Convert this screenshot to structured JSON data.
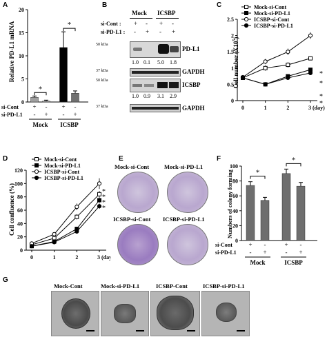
{
  "panels": {
    "A": "A",
    "B": "B",
    "C": "C",
    "D": "D",
    "E": "E",
    "F": "F",
    "G": "G"
  },
  "panel_a": {
    "ylabel": "Relative PD-L1 mRNA",
    "yticks": [
      "0",
      "5",
      "10",
      "15",
      "20"
    ],
    "row1_label": "si-Cont",
    "row2_label": "si-PD-L1",
    "row1_signs": [
      "+",
      "-",
      "+",
      "-"
    ],
    "row2_signs": [
      "-",
      "+",
      "-",
      "+"
    ],
    "groups": [
      "Mock",
      "ICSBP"
    ],
    "sig": [
      "*",
      "*"
    ]
  },
  "panel_b": {
    "groups": [
      "Mock",
      "ICSBP"
    ],
    "row1_label": "si-Cont :",
    "row2_label": "si-PD-L1 :",
    "row1_signs": [
      "+",
      "-",
      "+",
      "-"
    ],
    "row2_signs": [
      "-",
      "+",
      "-",
      "+"
    ],
    "kda": [
      "50 kDa",
      "37 kDa",
      "50 kDa",
      "37 kDa"
    ],
    "bands": [
      "PD-L1",
      "GAPDH",
      "ICSBP",
      "GAPDH"
    ],
    "pdl1_values": [
      "1.0",
      "0.1",
      "5.0",
      "1.8"
    ],
    "icsbp_values": [
      "1.0",
      "0.9",
      "3.1",
      "2.9"
    ]
  },
  "panel_c": {
    "ylabel": "Cell number (X10",
    "ylabel_sup": "5",
    "ylabel_end": ")",
    "sig": [
      "*",
      "*",
      "*",
      "*"
    ]
  },
  "panel_d": {
    "ylabel": "Cell confluence (%)",
    "sig": [
      "*",
      "*",
      "*",
      "*"
    ]
  },
  "panel_e": {
    "labels": [
      "Mock-si-Cont",
      "Mock-si-PD-L1",
      "ICSBP-si-Cont",
      "ICSBP-si-PD-L1"
    ]
  },
  "panel_f": {
    "ylabel": "Numbers of colony forming",
    "yticks": [
      "0",
      "20",
      "40",
      "60",
      "80",
      "100"
    ],
    "row1_label": "si-Cont",
    "row2_label": "si-PD-L1",
    "row1_signs": [
      "+",
      "-",
      "+",
      "-"
    ],
    "row2_signs": [
      "-",
      "+",
      "-",
      "+"
    ],
    "groups": [
      "Mock",
      "ICSBP"
    ],
    "sig": [
      "*",
      "*"
    ]
  },
  "panel_g": {
    "labels": [
      "Mock-Cont",
      "Mock-si-PD-L1",
      "ICSBP-Cont",
      "ICSBP-si-PD-L1"
    ]
  },
  "chart_data": [
    {
      "id": "A",
      "type": "bar",
      "categories": [
        "Mock si-Cont",
        "Mock si-PD-L1",
        "ICSBP si-Cont",
        "ICSBP si-PD-L1"
      ],
      "values": [
        1.0,
        0.2,
        11.8,
        1.9
      ],
      "errors": [
        0.3,
        0.2,
        3.4,
        0.5
      ],
      "colors": [
        "#a0a0a0",
        "#a0a0a0",
        "#000000",
        "#707070"
      ],
      "ylabel": "Relative PD-L1 mRNA",
      "ylim": [
        0,
        20
      ]
    },
    {
      "id": "C",
      "type": "line",
      "x": [
        0,
        1,
        2,
        3
      ],
      "xticks": [
        "0",
        "1",
        "2",
        "3 (day)"
      ],
      "yticks": [
        "0",
        "0.5",
        "1",
        "1.5",
        "2",
        "2.5"
      ],
      "ylim": [
        0,
        2.5
      ],
      "legend": "top-left",
      "series": [
        {
          "name": "Mock-si-Cont",
          "marker": "square-open",
          "values": [
            0.7,
            1.0,
            1.1,
            1.3
          ],
          "errors": [
            0.05,
            0.08,
            0.08,
            0.06
          ]
        },
        {
          "name": "Mock-si-PD-L1",
          "marker": "square-filled",
          "values": [
            0.7,
            0.5,
            0.75,
            0.95
          ],
          "errors": [
            0.05,
            0.03,
            0.05,
            0.05
          ]
        },
        {
          "name": "ICSBP-si-Cont",
          "marker": "circle-open",
          "values": [
            0.72,
            1.2,
            1.5,
            2.0
          ],
          "errors": [
            0.05,
            0.08,
            0.1,
            0.1
          ]
        },
        {
          "name": "ICSBP-si-PD-L1",
          "marker": "circle-filled",
          "values": [
            0.7,
            0.5,
            0.7,
            0.85
          ],
          "errors": [
            0.05,
            0.03,
            0.05,
            0.05
          ]
        }
      ]
    },
    {
      "id": "D",
      "type": "line",
      "x": [
        0,
        1,
        2,
        3
      ],
      "xticks": [
        "0",
        "1",
        "2",
        "3 (day)"
      ],
      "yticks": [
        "0",
        "20",
        "40",
        "60",
        "80",
        "100",
        "120"
      ],
      "ylim": [
        0,
        120
      ],
      "legend": "top-left",
      "series": [
        {
          "name": "Mock-si-Cont",
          "marker": "square-open",
          "values": [
            8,
            18,
            50,
            84
          ],
          "errors": [
            2,
            2,
            4,
            5
          ]
        },
        {
          "name": "Mock-si-PD-L1",
          "marker": "square-filled",
          "values": [
            6,
            13,
            32,
            75
          ],
          "errors": [
            2,
            2,
            3,
            4
          ]
        },
        {
          "name": "ICSBP-si-Cont",
          "marker": "circle-open",
          "values": [
            10,
            24,
            65,
            100
          ],
          "errors": [
            2,
            3,
            5,
            8
          ]
        },
        {
          "name": "ICSBP-si-PD-L1",
          "marker": "circle-filled",
          "values": [
            6,
            12,
            28,
            66
          ],
          "errors": [
            2,
            2,
            3,
            4
          ]
        }
      ]
    },
    {
      "id": "F",
      "type": "bar",
      "categories": [
        "Mock si-Cont",
        "Mock si-PD-L1",
        "ICSBP si-Cont",
        "ICSBP si-PD-L1"
      ],
      "values": [
        74,
        54,
        90,
        73
      ],
      "errors": [
        5,
        4,
        6,
        5
      ],
      "colors": [
        "#6e6e6e",
        "#6e6e6e",
        "#6e6e6e",
        "#6e6e6e"
      ],
      "ylabel": "Numbers of colony forming",
      "ylim": [
        0,
        100
      ]
    }
  ]
}
